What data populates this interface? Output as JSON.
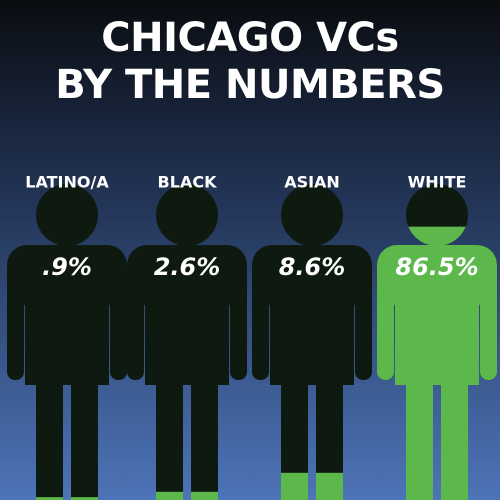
{
  "chart_data": {
    "type": "pictograph",
    "title": [
      "CHICAGO VCs",
      "BY THE NUMBERS"
    ],
    "categories": [
      "LATINO/A",
      "BLACK",
      "ASIAN",
      "WHITE"
    ],
    "values": [
      0.9,
      2.6,
      8.6,
      86.5
    ],
    "value_labels": [
      ".9%",
      "2.6%",
      "8.6%",
      "86.5%"
    ],
    "ylim": [
      0,
      100
    ],
    "color": "#5cb84a",
    "base_color": "#0e1a10"
  }
}
